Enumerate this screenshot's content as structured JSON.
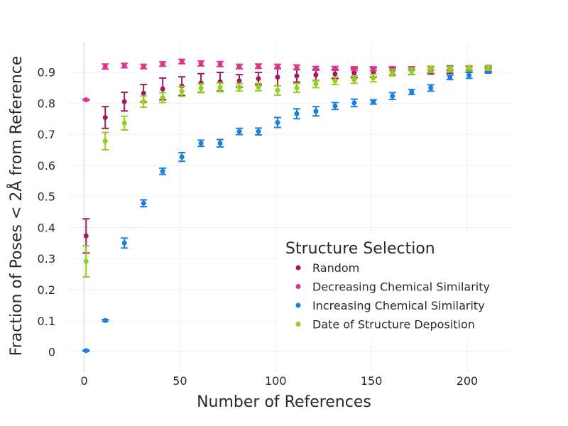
{
  "chart_data": {
    "type": "scatter",
    "xlabel": "Number of References",
    "ylabel": "Fraction of Poses < 2Å from Reference",
    "xlim": [
      -8,
      223
    ],
    "ylim": [
      -0.065,
      0.995
    ],
    "x_ticks": [
      "0",
      "50",
      "100",
      "150",
      "200"
    ],
    "y_ticks": [
      "0",
      "0.1",
      "0.2",
      "0.3",
      "0.4",
      "0.5",
      "0.6",
      "0.7",
      "0.8",
      "0.9"
    ],
    "grid": true,
    "legend": {
      "title": "Structure Selection",
      "placement": "bottom-right"
    },
    "series": [
      {
        "name": "Random",
        "color": "#a3195b",
        "x": [
          1,
          11,
          21,
          31,
          41,
          51,
          61,
          71,
          81,
          91,
          101,
          111,
          121,
          131,
          141,
          151,
          161,
          171,
          181,
          191,
          201,
          211
        ],
        "y": [
          0.373,
          0.754,
          0.805,
          0.832,
          0.846,
          0.855,
          0.865,
          0.869,
          0.872,
          0.879,
          0.884,
          0.888,
          0.891,
          0.894,
          0.897,
          0.899,
          0.902,
          0.904,
          0.906,
          0.908,
          0.909,
          0.911
        ],
        "err": [
          0.055,
          0.035,
          0.03,
          0.028,
          0.035,
          0.03,
          0.03,
          0.03,
          0.02,
          0.02,
          0.028,
          0.02,
          0.018,
          0.015,
          0.015,
          0.015,
          0.012,
          0.012,
          0.012,
          0.012,
          0.01,
          0.01
        ]
      },
      {
        "name": "Decreasing Chemical Similarity",
        "color": "#e0338a",
        "x": [
          1,
          11,
          21,
          31,
          41,
          51,
          61,
          71,
          81,
          91,
          101,
          111,
          121,
          131,
          141,
          151,
          161,
          171,
          181,
          191,
          201,
          211
        ],
        "y": [
          0.811,
          0.918,
          0.921,
          0.918,
          0.926,
          0.934,
          0.928,
          0.926,
          0.918,
          0.919,
          0.918,
          0.916,
          0.912,
          0.912,
          0.911,
          0.911,
          0.912,
          0.912,
          0.912,
          0.912,
          0.912,
          0.912
        ],
        "err": [
          0.002,
          0.008,
          0.007,
          0.007,
          0.007,
          0.007,
          0.008,
          0.008,
          0.007,
          0.007,
          0.007,
          0.007,
          0.006,
          0.006,
          0.006,
          0.006,
          0.005,
          0.005,
          0.005,
          0.005,
          0.005,
          0.005
        ]
      },
      {
        "name": "Increasing Chemical Similarity",
        "color": "#1a7fdd",
        "x": [
          1,
          11,
          21,
          31,
          41,
          51,
          61,
          71,
          81,
          91,
          101,
          111,
          121,
          131,
          141,
          151,
          161,
          171,
          181,
          191,
          201,
          211
        ],
        "y": [
          0.004,
          0.101,
          0.35,
          0.478,
          0.581,
          0.627,
          0.671,
          0.671,
          0.709,
          0.709,
          0.738,
          0.766,
          0.774,
          0.791,
          0.801,
          0.804,
          0.823,
          0.836,
          0.849,
          0.883,
          0.89,
          0.905
        ],
        "err": [
          0.002,
          0.003,
          0.016,
          0.011,
          0.01,
          0.014,
          0.01,
          0.012,
          0.01,
          0.011,
          0.016,
          0.016,
          0.015,
          0.011,
          0.012,
          0.007,
          0.011,
          0.008,
          0.01,
          0.007,
          0.01,
          0.008
        ]
      },
      {
        "name": "Date of Structure Deposition",
        "color": "#8ed21b",
        "x": [
          1,
          11,
          21,
          31,
          41,
          51,
          61,
          71,
          81,
          91,
          101,
          111,
          121,
          131,
          141,
          151,
          161,
          171,
          181,
          191,
          201,
          211
        ],
        "y": [
          0.291,
          0.678,
          0.736,
          0.805,
          0.818,
          0.838,
          0.848,
          0.851,
          0.851,
          0.852,
          0.841,
          0.849,
          0.862,
          0.872,
          0.876,
          0.881,
          0.898,
          0.903,
          0.909,
          0.91,
          0.913,
          0.913
        ],
        "err": [
          0.05,
          0.028,
          0.022,
          0.018,
          0.016,
          0.016,
          0.014,
          0.014,
          0.012,
          0.012,
          0.015,
          0.014,
          0.012,
          0.012,
          0.012,
          0.012,
          0.01,
          0.01,
          0.01,
          0.008,
          0.008,
          0.007
        ]
      }
    ]
  }
}
